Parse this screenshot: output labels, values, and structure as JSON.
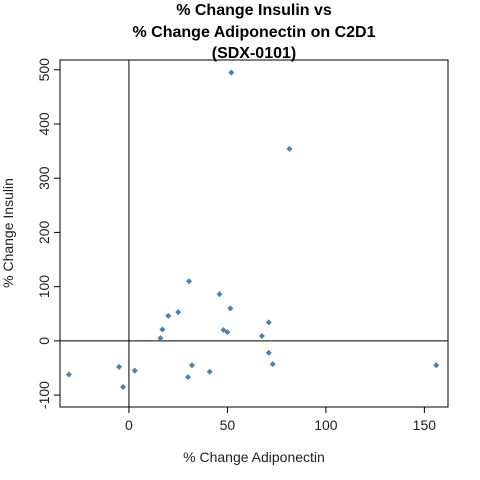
{
  "chart_data": {
    "type": "scatter",
    "title_lines": [
      "% Change Insulin vs",
      "% Change Adiponectin on C2D1",
      "(SDX-0101)"
    ],
    "xlabel": "% Change Adiponectin",
    "ylabel": "% Change Insulin",
    "xlim": [
      -35,
      162
    ],
    "ylim": [
      -122,
      518
    ],
    "x_ticks": [
      0,
      50,
      100,
      150
    ],
    "y_ticks": [
      -100,
      0,
      100,
      200,
      300,
      400,
      500
    ],
    "reference_lines": {
      "x": 0,
      "y": 0
    },
    "point_color": "#4f81a8",
    "points": [
      {
        "x": -30.5,
        "y": -62
      },
      {
        "x": -5,
        "y": -48
      },
      {
        "x": -3,
        "y": -85
      },
      {
        "x": 3,
        "y": -55
      },
      {
        "x": 16,
        "y": 5
      },
      {
        "x": 17,
        "y": 21
      },
      {
        "x": 20,
        "y": 46
      },
      {
        "x": 25,
        "y": 53
      },
      {
        "x": 30,
        "y": -67
      },
      {
        "x": 30.5,
        "y": 110
      },
      {
        "x": 32,
        "y": -45
      },
      {
        "x": 41,
        "y": -57
      },
      {
        "x": 46,
        "y": 86
      },
      {
        "x": 48,
        "y": 20
      },
      {
        "x": 50,
        "y": 16
      },
      {
        "x": 51.5,
        "y": 60
      },
      {
        "x": 52,
        "y": 495
      },
      {
        "x": 67.5,
        "y": 9
      },
      {
        "x": 71,
        "y": 34
      },
      {
        "x": 71,
        "y": -22
      },
      {
        "x": 73,
        "y": -43
      },
      {
        "x": 81.5,
        "y": 354
      },
      {
        "x": 156,
        "y": -45
      }
    ]
  }
}
